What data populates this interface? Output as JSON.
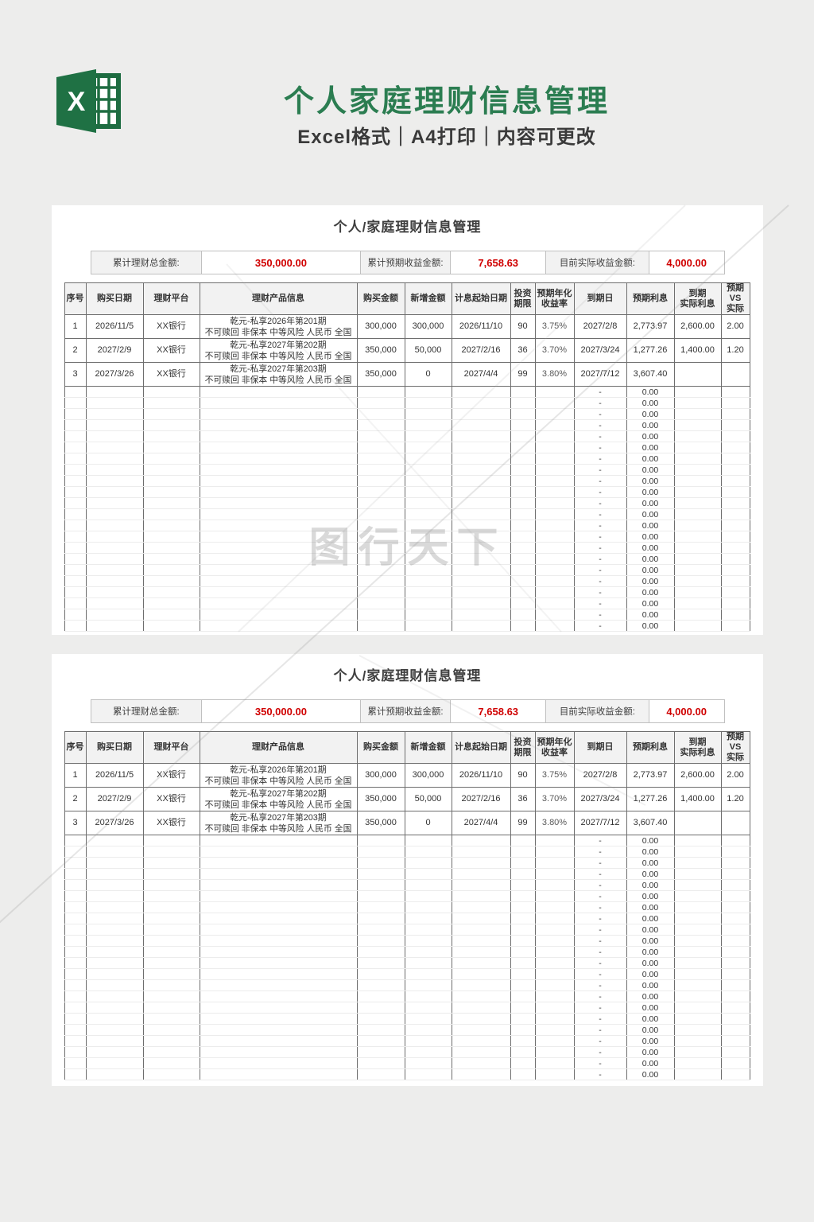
{
  "header": {
    "title": "个人家庭理财信息管理",
    "subtitle": "Excel格式｜A4打印｜内容可更改",
    "logo_letter": "X"
  },
  "sheet": {
    "title": "个人/家庭理财信息管理",
    "summary": [
      {
        "label": "累计理财总金额:",
        "value": "350,000.00"
      },
      {
        "label": "累计预期收益金额:",
        "value": "7,658.63"
      },
      {
        "label": "目前实际收益金额:",
        "value": "4,000.00"
      }
    ],
    "columns": [
      "序号",
      "购买日期",
      "理财平台",
      "理财产品信息",
      "购买金额",
      "新增金额",
      "计息起始日期",
      "投资\n期限",
      "预期年化\n收益率",
      "到期日",
      "预期利息",
      "到期\n实际利息",
      "预期VS\n实际"
    ],
    "rows": [
      {
        "no": "1",
        "buy_date": "2026/11/5",
        "platform": "XX银行",
        "product_line1": "乾元-私享2026年第201期",
        "product_line2": "不可赎回 非保本 中等风险 人民币 全国",
        "buy_amount": "300,000",
        "new_amount": "300,000",
        "interest_start": "2026/11/10",
        "term": "90",
        "rate": "3.75%",
        "due_date": "2027/2/8",
        "expected_interest": "2,773.97",
        "actual_interest": "2,600.00",
        "vs": "2.00"
      },
      {
        "no": "2",
        "buy_date": "2027/2/9",
        "platform": "XX银行",
        "product_line1": "乾元-私享2027年第202期",
        "product_line2": "不可赎回 非保本 中等风险 人民币 全国",
        "buy_amount": "350,000",
        "new_amount": "50,000",
        "interest_start": "2027/2/16",
        "term": "36",
        "rate": "3.70%",
        "due_date": "2027/3/24",
        "expected_interest": "1,277.26",
        "actual_interest": "1,400.00",
        "vs": "1.20"
      },
      {
        "no": "3",
        "buy_date": "2027/3/26",
        "platform": "XX银行",
        "product_line1": "乾元-私享2027年第203期",
        "product_line2": "不可赎回 非保本 中等风险 人民币 全国",
        "buy_amount": "350,000",
        "new_amount": "0",
        "interest_start": "2027/4/4",
        "term": "99",
        "rate": "3.80%",
        "due_date": "2027/7/12",
        "expected_interest": "3,607.40",
        "actual_interest": "",
        "vs": ""
      }
    ],
    "empty_row": {
      "due_date": "-",
      "expected_interest": "0.00"
    },
    "empty_row_count": 22,
    "watermark": "图行天下"
  },
  "panels": [
    {
      "show_watermark": true
    },
    {
      "show_watermark": false
    }
  ],
  "colors": {
    "brand_green": "#2B7D51",
    "logo_green": "#1E6C41",
    "value_red": "#D00000",
    "page_bg": "#EDEDEC",
    "table_border": "#6E6E6E",
    "light_grid": "#ECECEC"
  }
}
